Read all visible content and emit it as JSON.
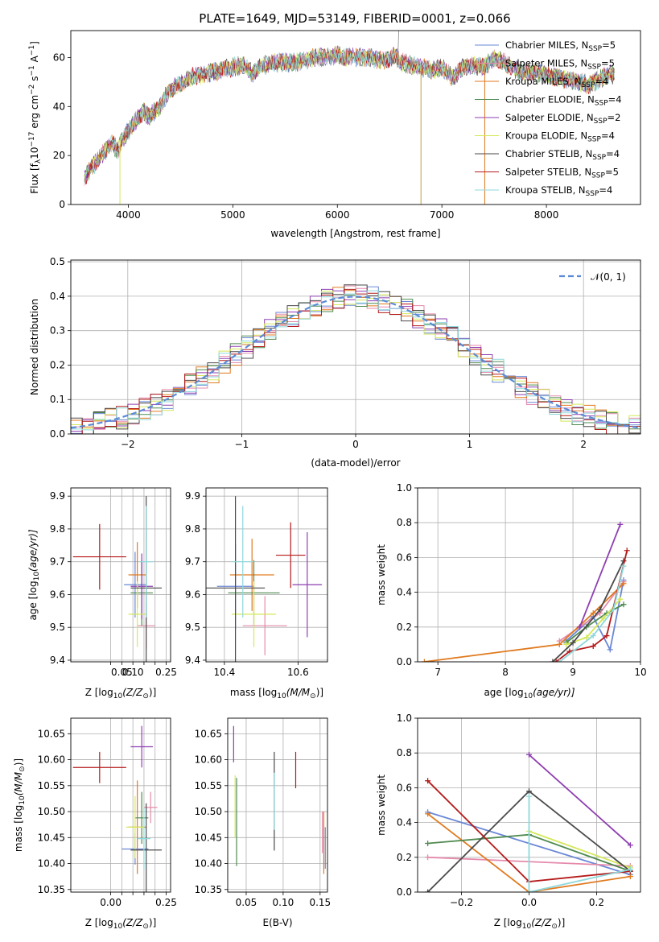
{
  "figure": {
    "title": "PLATE=1649, MJD=53149, FIBERID=0001, z=0.066"
  },
  "colors": {
    "Chabrier MILES": "#6a87d6",
    "Salpeter MILES": "#e58aab",
    "Kroupa MILES": "#e07a1f",
    "Chabrier ELODIE": "#4f8a4f",
    "Salpeter ELODIE": "#8e3fb2",
    "Kroupa ELODIE": "#d4e85a",
    "Chabrier STELIB": "#4a4a4a",
    "Salpeter STELIB": "#b51a1a",
    "Kroupa STELIB": "#8fd8dc"
  },
  "chart_data": [
    {
      "id": "spectrum",
      "type": "line",
      "title": "PLATE=1649, MJD=53149, FIBERID=0001, z=0.066",
      "xlabel": "wavelength [Angstrom, rest frame]",
      "ylabel_main": "Flux [f",
      "ylabel_sub1": "λ",
      "ylabel_mid": "10",
      "ylabel_sup1": "−17",
      "ylabel_rest": " erg cm",
      "ylabel_sup2": "−2",
      "ylabel_s": " s",
      "ylabel_sup3": "−1",
      "ylabel_A": " A",
      "ylabel_sup4": "−1",
      "ylabel_end": "]",
      "xlim": [
        3450,
        8900
      ],
      "ylim": [
        0,
        71
      ],
      "xticks": [
        4000,
        5000,
        6000,
        7000,
        8000
      ],
      "yticks": [
        0,
        20,
        40,
        60
      ],
      "continuum": [
        [
          3580,
          11
        ],
        [
          3650,
          15
        ],
        [
          3700,
          18
        ],
        [
          3780,
          22
        ],
        [
          3850,
          25
        ],
        [
          3900,
          22
        ],
        [
          3950,
          27
        ],
        [
          4000,
          30
        ],
        [
          4050,
          33
        ],
        [
          4100,
          36
        ],
        [
          4150,
          38
        ],
        [
          4200,
          36
        ],
        [
          4250,
          38
        ],
        [
          4300,
          40
        ],
        [
          4350,
          44
        ],
        [
          4400,
          46
        ],
        [
          4450,
          48
        ],
        [
          4500,
          49
        ],
        [
          4600,
          52
        ],
        [
          4700,
          53
        ],
        [
          4800,
          54
        ],
        [
          4900,
          55
        ],
        [
          5000,
          56
        ],
        [
          5100,
          57
        ],
        [
          5150,
          55
        ],
        [
          5200,
          53
        ],
        [
          5250,
          56
        ],
        [
          5300,
          57
        ],
        [
          5400,
          58
        ],
        [
          5500,
          58
        ],
        [
          5600,
          58
        ],
        [
          5700,
          59
        ],
        [
          5800,
          60
        ],
        [
          5900,
          60
        ],
        [
          6000,
          61
        ],
        [
          6100,
          60
        ],
        [
          6200,
          60
        ],
        [
          6300,
          60
        ],
        [
          6400,
          59
        ],
        [
          6500,
          59
        ],
        [
          6560,
          61
        ],
        [
          6600,
          58
        ],
        [
          6700,
          57
        ],
        [
          6800,
          56
        ],
        [
          6900,
          55
        ],
        [
          7000,
          56
        ],
        [
          7100,
          52
        ],
        [
          7200,
          56
        ],
        [
          7300,
          57
        ],
        [
          7400,
          56
        ],
        [
          7500,
          60
        ],
        [
          7600,
          58
        ],
        [
          7700,
          55
        ],
        [
          7800,
          54
        ],
        [
          7900,
          54
        ],
        [
          8000,
          53
        ],
        [
          8100,
          52
        ],
        [
          8200,
          51
        ],
        [
          8300,
          50
        ],
        [
          8400,
          49
        ],
        [
          8500,
          51
        ],
        [
          8600,
          53
        ],
        [
          8650,
          53
        ]
      ],
      "legend": [
        {
          "name": "Chabrier MILES, N",
          "sub": "SSP",
          "val": "=5"
        },
        {
          "name": "Salpeter MILES, N",
          "sub": "SSP",
          "val": "=5"
        },
        {
          "name": "Kroupa MILES, N",
          "sub": "SSP",
          "val": "=4"
        },
        {
          "name": "Chabrier ELODIE, N",
          "sub": "SSP",
          "val": "=4"
        },
        {
          "name": "Salpeter ELODIE, N",
          "sub": "SSP",
          "val": "=2"
        },
        {
          "name": "Kroupa ELODIE, N",
          "sub": "SSP",
          "val": "=4"
        },
        {
          "name": "Chabrier STELIB, N",
          "sub": "SSP",
          "val": "=4"
        },
        {
          "name": "Salpeter STELIB, N",
          "sub": "SSP",
          "val": "=5"
        },
        {
          "name": "Kroupa STELIB, N",
          "sub": "SSP",
          "val": "=4"
        }
      ],
      "legend_placement": "upper-right"
    },
    {
      "id": "residuals",
      "type": "line",
      "xlabel": "(data-model)/error",
      "ylabel": "Normed distribution",
      "xlim": [
        -2.5,
        2.5
      ],
      "ylim": [
        0,
        0.505
      ],
      "xticks": [
        -2,
        -1,
        0,
        1,
        2
      ],
      "yticks": [
        0.0,
        0.1,
        0.2,
        0.3,
        0.4,
        0.5
      ],
      "grid": true,
      "legend": "𝒩(0, 1)",
      "legend_placement": "upper-right"
    },
    {
      "id": "age-vs-Z",
      "type": "scatter",
      "xlabel": "Z [log",
      "xlabel_sub": "10",
      "xlabel_rest": "(Z/Z",
      "xlabel_sun": "⊙",
      "xlabel_end": ")]",
      "ylabel": "age  [log",
      "ylabel_sub": "10",
      "ylabel_rest": "(age/yr)]",
      "xlim": [
        -0.18,
        0.27
      ],
      "ylim": [
        9.395,
        9.925
      ],
      "xticks": [
        0.0,
        0.05,
        0.1,
        0.15,
        0.2,
        0.25
      ],
      "xticklabels": [
        "",
        "0.05",
        "0.10",
        "",
        "",
        "0.25"
      ],
      "yticks": [
        9.4,
        9.5,
        9.6,
        9.7,
        9.8,
        9.9
      ],
      "grid": true,
      "points": [
        {
          "series": "Chabrier MILES",
          "x": 0.11,
          "y": 9.63,
          "xerr": 0.05,
          "yerr": 0.1
        },
        {
          "series": "Salpeter MILES",
          "x": 0.16,
          "y": 9.505,
          "xerr": 0.04,
          "yerr": 0.07
        },
        {
          "series": "Kroupa MILES",
          "x": 0.12,
          "y": 9.66,
          "xerr": 0.04,
          "yerr": 0.1
        },
        {
          "series": "Chabrier ELODIE",
          "x": 0.14,
          "y": 9.605,
          "xerr": 0.05,
          "yerr": 0.1
        },
        {
          "series": "Salpeter ELODIE",
          "x": 0.14,
          "y": 9.625,
          "xerr": 0.05,
          "yerr": 0.1
        },
        {
          "series": "Kroupa ELODIE",
          "x": 0.12,
          "y": 9.54,
          "xerr": 0.04,
          "yerr": 0.1
        },
        {
          "series": "Chabrier STELIB",
          "x": 0.16,
          "y": 9.62,
          "xerr": 0.07,
          "yerr": 0.28
        },
        {
          "series": "Salpeter STELIB",
          "x": -0.05,
          "y": 9.715,
          "xerr": 0.12,
          "yerr": 0.1
        },
        {
          "series": "Kroupa STELIB",
          "x": 0.16,
          "y": 9.7,
          "xerr": 0.03,
          "yerr": 0.17
        }
      ]
    },
    {
      "id": "age-vs-mass",
      "type": "scatter",
      "xlabel": "mass [log",
      "xlabel_sub": "10",
      "xlabel_rest": "(M/M",
      "xlabel_sun": "⊙",
      "xlabel_end": ")]",
      "xlim": [
        10.35,
        10.68
      ],
      "ylim": [
        9.395,
        9.925
      ],
      "xticks": [
        10.4,
        10.6
      ],
      "yticks": [
        9.4,
        9.5,
        9.6,
        9.7,
        9.8,
        9.9
      ],
      "grid": true,
      "points": [
        {
          "series": "Chabrier MILES",
          "x": 10.43,
          "y": 9.625,
          "xerr": 0.05,
          "yerr": 0.13
        },
        {
          "series": "Salpeter MILES",
          "x": 10.51,
          "y": 9.505,
          "xerr": 0.06,
          "yerr": 0.09
        },
        {
          "series": "Kroupa MILES",
          "x": 10.475,
          "y": 9.66,
          "xerr": 0.06,
          "yerr": 0.11
        },
        {
          "series": "Chabrier ELODIE",
          "x": 10.48,
          "y": 9.605,
          "xerr": 0.07,
          "yerr": 0.1
        },
        {
          "series": "Salpeter ELODIE",
          "x": 10.625,
          "y": 9.63,
          "xerr": 0.04,
          "yerr": 0.16
        },
        {
          "series": "Kroupa ELODIE",
          "x": 10.48,
          "y": 9.54,
          "xerr": 0.06,
          "yerr": 0.1
        },
        {
          "series": "Chabrier STELIB",
          "x": 10.43,
          "y": 9.62,
          "xerr": 0.08,
          "yerr": 0.28
        },
        {
          "series": "Salpeter STELIB",
          "x": 10.58,
          "y": 9.72,
          "xerr": 0.04,
          "yerr": 0.1
        },
        {
          "series": "Kroupa STELIB",
          "x": 10.45,
          "y": 9.7,
          "xerr": 0.03,
          "yerr": 0.17
        }
      ]
    },
    {
      "id": "weight-vs-age",
      "type": "line",
      "xlabel": "age  [log",
      "xlabel_sub": "10",
      "xlabel_rest": "(age/yr)]",
      "ylabel": "mass weight",
      "xlim": [
        6.7,
        10.0
      ],
      "ylim": [
        0,
        1.0
      ],
      "xticks": [
        7,
        8,
        9,
        10
      ],
      "yticks": [
        0.0,
        0.2,
        0.4,
        0.6,
        0.8,
        1.0
      ],
      "grid": true,
      "series": [
        {
          "name": "Chabrier MILES",
          "x": [
            8.9,
            9.3,
            9.55,
            9.75
          ],
          "y": [
            0.12,
            0.26,
            0.07,
            0.47
          ]
        },
        {
          "name": "Salpeter MILES",
          "x": [
            8.8,
            9.1,
            9.4,
            9.75
          ],
          "y": [
            0.12,
            0.2,
            0.28,
            0.46
          ]
        },
        {
          "name": "Kroupa MILES",
          "x": [
            6.8,
            8.8,
            9.3,
            9.75
          ],
          "y": [
            0.0,
            0.1,
            0.28,
            0.45
          ]
        },
        {
          "name": "Chabrier ELODIE",
          "x": [
            8.9,
            9.2,
            9.5,
            9.75
          ],
          "y": [
            0.11,
            0.2,
            0.28,
            0.33
          ]
        },
        {
          "name": "Salpeter ELODIE",
          "x": [
            9.1,
            9.7
          ],
          "y": [
            0.2,
            0.79
          ]
        },
        {
          "name": "Kroupa ELODIE",
          "x": [
            8.9,
            9.2,
            9.45,
            9.7
          ],
          "y": [
            0.1,
            0.14,
            0.25,
            0.36
          ]
        },
        {
          "name": "Chabrier STELIB",
          "x": [
            8.7,
            9.0,
            9.4,
            9.75
          ],
          "y": [
            0.0,
            0.11,
            0.3,
            0.58
          ]
        },
        {
          "name": "Salpeter STELIB",
          "x": [
            8.75,
            8.95,
            9.3,
            9.5,
            9.8
          ],
          "y": [
            0.0,
            0.06,
            0.09,
            0.15,
            0.64
          ]
        },
        {
          "name": "Kroupa STELIB",
          "x": [
            8.8,
            9.3,
            9.6,
            9.75
          ],
          "y": [
            0.0,
            0.15,
            0.3,
            0.55
          ]
        }
      ]
    },
    {
      "id": "mass-vs-Z",
      "type": "scatter",
      "xlabel": "Z [log",
      "xlabel_sub": "10",
      "xlabel_rest": "(Z/Z",
      "xlabel_sun": "⊙",
      "xlabel_end": ")]",
      "ylabel": "mass [log",
      "ylabel_sub": "10",
      "ylabel_rest": "(M/M",
      "ylabel_sun": "⊙",
      "ylabel_end": ")]",
      "xlim": [
        -0.18,
        0.27
      ],
      "ylim": [
        10.345,
        10.68
      ],
      "xticks": [
        0.0,
        0.05,
        0.1,
        0.15,
        0.2,
        0.25
      ],
      "xticklabels": [
        "0.00",
        "",
        "",
        "",
        "",
        "0.25"
      ],
      "yticks": [
        10.35,
        10.4,
        10.45,
        10.5,
        10.55,
        10.6,
        10.65
      ],
      "grid": true,
      "points": [
        {
          "series": "Chabrier MILES",
          "x": 0.11,
          "y": 10.428,
          "xerr": 0.06,
          "yerr": 0.03
        },
        {
          "series": "Salpeter MILES",
          "x": 0.18,
          "y": 10.508,
          "xerr": 0.03,
          "yerr": 0.03
        },
        {
          "series": "Kroupa MILES",
          "x": 0.12,
          "y": 10.47,
          "xerr": 0.04,
          "yerr": 0.09
        },
        {
          "series": "Chabrier ELODIE",
          "x": 0.14,
          "y": 10.488,
          "xerr": 0.03,
          "yerr": 0.05
        },
        {
          "series": "Salpeter ELODIE",
          "x": 0.14,
          "y": 10.625,
          "xerr": 0.05,
          "yerr": 0.04
        },
        {
          "series": "Kroupa ELODIE",
          "x": 0.11,
          "y": 10.47,
          "xerr": 0.04,
          "yerr": 0.06
        },
        {
          "series": "Chabrier STELIB",
          "x": 0.16,
          "y": 10.426,
          "xerr": 0.07,
          "yerr": 0.09
        },
        {
          "series": "Salpeter STELIB",
          "x": -0.05,
          "y": 10.585,
          "xerr": 0.12,
          "yerr": 0.03
        },
        {
          "series": "Kroupa STELIB",
          "x": 0.15,
          "y": 10.448,
          "xerr": 0.03,
          "yerr": 0.06
        }
      ]
    },
    {
      "id": "mass-vs-EBV",
      "type": "scatter",
      "xlabel": "E(B-V)",
      "xlim": [
        0.025,
        0.16
      ],
      "ylim": [
        10.345,
        10.68
      ],
      "xticks": [
        0.05,
        0.1,
        0.15
      ],
      "yticks": [
        10.35,
        10.4,
        10.45,
        10.5,
        10.55,
        10.6,
        10.65
      ],
      "grid": true,
      "points": [
        {
          "series": "Chabrier MILES",
          "x": 0.157,
          "y": 10.43,
          "xerr": 0.0,
          "yerr": 0.04
        },
        {
          "series": "Salpeter MILES",
          "x": 0.153,
          "y": 10.46,
          "xerr": 0.0,
          "yerr": 0.04
        },
        {
          "series": "Kroupa MILES",
          "x": 0.155,
          "y": 10.44,
          "xerr": 0.0,
          "yerr": 0.06
        },
        {
          "series": "Chabrier ELODIE",
          "x": 0.037,
          "y": 10.48,
          "xerr": 0.0,
          "yerr": 0.085
        },
        {
          "series": "Salpeter ELODIE",
          "x": 0.033,
          "y": 10.63,
          "xerr": 0.0,
          "yerr": 0.035
        },
        {
          "series": "Kroupa ELODIE",
          "x": 0.035,
          "y": 10.51,
          "xerr": 0.0,
          "yerr": 0.06
        },
        {
          "series": "Chabrier STELIB",
          "x": 0.088,
          "y": 10.52,
          "xerr": 0.0,
          "yerr": 0.095
        },
        {
          "series": "Salpeter STELIB",
          "x": 0.117,
          "y": 10.58,
          "xerr": 0.0,
          "yerr": 0.035
        },
        {
          "series": "Kroupa STELIB",
          "x": 0.088,
          "y": 10.52,
          "xerr": 0.0,
          "yerr": 0.055
        }
      ]
    },
    {
      "id": "weight-vs-Z",
      "type": "line",
      "xlabel": "Z [log",
      "xlabel_sub": "10",
      "xlabel_rest": "(Z/Z",
      "xlabel_sun": "⊙",
      "xlabel_end": ")]",
      "ylabel": "mass weight",
      "xlim": [
        -0.33,
        0.33
      ],
      "ylim": [
        0,
        1.0
      ],
      "xticks": [
        -0.2,
        0.0,
        0.2
      ],
      "yticks": [
        0.0,
        0.2,
        0.4,
        0.6,
        0.8,
        1.0
      ],
      "grid": true,
      "series": [
        {
          "name": "Chabrier MILES",
          "x": [
            -0.3,
            0.3
          ],
          "y": [
            0.46,
            0.1
          ]
        },
        {
          "name": "Salpeter MILES",
          "x": [
            -0.3,
            0.3
          ],
          "y": [
            0.2,
            0.15
          ]
        },
        {
          "name": "Kroupa MILES",
          "x": [
            -0.3,
            0.0,
            0.3
          ],
          "y": [
            0.45,
            0.0,
            0.09
          ]
        },
        {
          "name": "Chabrier ELODIE",
          "x": [
            -0.3,
            0.0,
            0.3
          ],
          "y": [
            0.28,
            0.33,
            0.12
          ]
        },
        {
          "name": "Salpeter ELODIE",
          "x": [
            0.0,
            0.3
          ],
          "y": [
            0.79,
            0.27
          ]
        },
        {
          "name": "Kroupa ELODIE",
          "x": [
            0.0,
            0.3
          ],
          "y": [
            0.35,
            0.14
          ]
        },
        {
          "name": "Chabrier STELIB",
          "x": [
            -0.3,
            0.0,
            0.3
          ],
          "y": [
            0.0,
            0.58,
            0.12
          ]
        },
        {
          "name": "Salpeter STELIB",
          "x": [
            -0.3,
            0.0,
            0.3
          ],
          "y": [
            0.64,
            0.06,
            0.12
          ]
        },
        {
          "name": "Kroupa STELIB",
          "x": [
            0.0,
            0.0,
            0.3
          ],
          "y": [
            0.55,
            0.0,
            0.13
          ]
        }
      ]
    }
  ]
}
